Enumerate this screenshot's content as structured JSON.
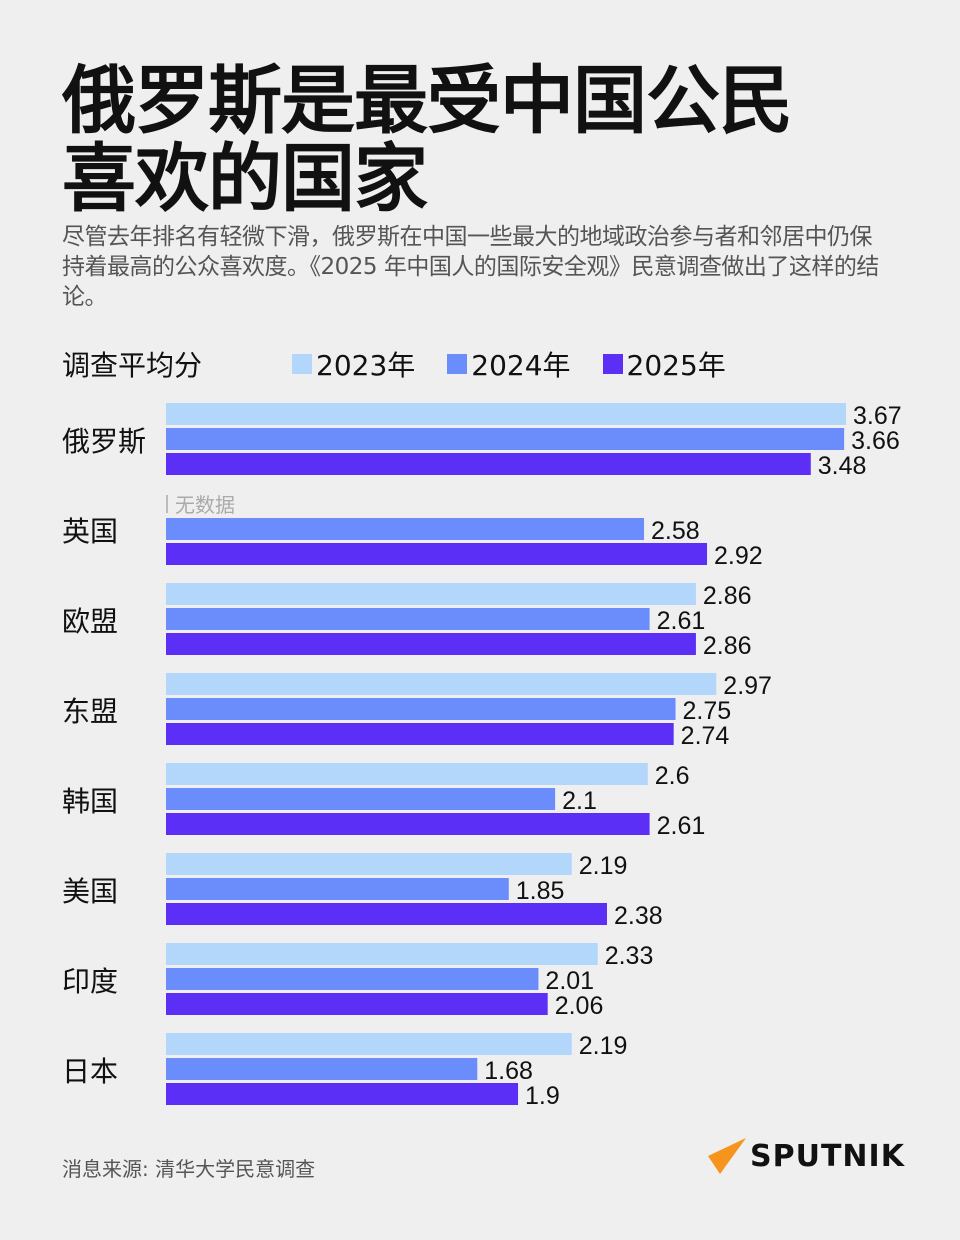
{
  "title_lines": [
    "俄罗斯是最受中国公民",
    "喜欢的国家"
  ],
  "subtitle": "尽管去年排名有轻微下滑，俄罗斯在中国一些最大的地域政治参与者和邻居中仍保持着最高的公众喜欢度。《2025 年中国人的国际安全观》民意调查做出了这样的结论。",
  "source": "消息来源: 清华大学民意调查",
  "logo": "SPUTNIK",
  "colors": {
    "background": "#efefef",
    "logo_accent": "#f7941d"
  },
  "chart_data": {
    "type": "bar",
    "orientation": "horizontal",
    "ylabel": "调查平均分",
    "legend_position": "top",
    "grid": false,
    "xlim": [
      0,
      3.67
    ],
    "categories": [
      "俄罗斯",
      "英国",
      "欧盟",
      "东盟",
      "韩国",
      "美国",
      "印度",
      "日本"
    ],
    "series": [
      {
        "name": "2023年",
        "color": "#b3d6fb",
        "values": [
          3.67,
          null,
          2.86,
          2.97,
          2.6,
          2.19,
          2.33,
          2.19
        ]
      },
      {
        "name": "2024年",
        "color": "#6b8cfb",
        "values": [
          3.66,
          2.58,
          2.61,
          2.75,
          2.1,
          1.85,
          2.01,
          1.68
        ]
      },
      {
        "name": "2025年",
        "color": "#5b2ff5",
        "values": [
          3.48,
          2.92,
          2.86,
          2.74,
          2.61,
          2.38,
          2.06,
          1.9
        ]
      }
    ],
    "no_data_label": "无数据"
  }
}
